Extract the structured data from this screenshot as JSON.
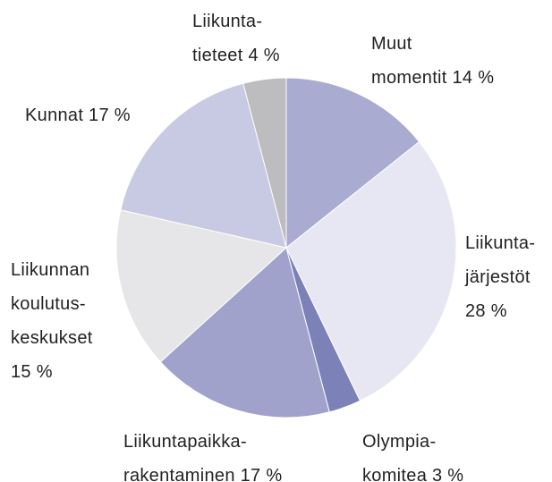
{
  "chart_data": {
    "type": "pie",
    "labels": [
      [
        "Muut",
        "momentit 14 %"
      ],
      [
        "Liikunta-",
        "järjestöt",
        "28 %"
      ],
      [
        "Olympia-",
        "komitea 3 %"
      ],
      [
        "Liikuntapaikka-",
        "rakentaminen 17 %"
      ],
      [
        "Liikunnan",
        "koulutus-",
        "keskukset",
        "15 %"
      ],
      [
        "Kunnat 17 %"
      ],
      [
        "Liikunta-",
        "tieteet 4 %"
      ]
    ],
    "values": [
      14,
      28,
      3,
      17,
      15,
      17,
      4
    ],
    "colors": [
      "#a9abd1",
      "#e7e7f3",
      "#7c81b7",
      "#a0a2cc",
      "#e6e6e8",
      "#c8c9e3",
      "#bdbdbf"
    ]
  }
}
